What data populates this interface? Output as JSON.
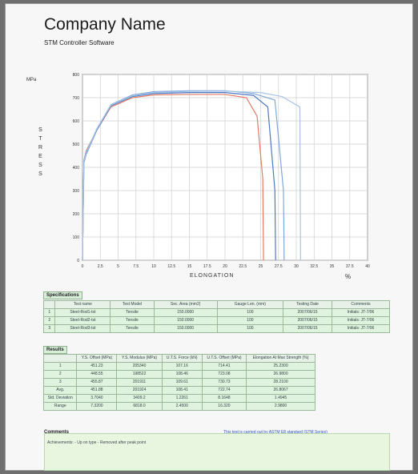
{
  "header": {
    "company": "Company Name",
    "software": "STM Controller Software"
  },
  "chart": {
    "y_unit": "MPa",
    "y_label": "STRESS",
    "x_label": "ELONGATION",
    "x_unit": "%"
  },
  "chart_data": {
    "type": "line",
    "xlabel": "ELONGATION",
    "ylabel": "STRESS",
    "xlim": [
      0,
      40
    ],
    "ylim": [
      0,
      800
    ],
    "x_ticks": [
      0,
      2.5,
      5,
      7.5,
      10,
      12.5,
      15,
      17.5,
      20,
      22.5,
      25,
      27.5,
      30,
      32.5,
      35,
      37.5,
      40
    ],
    "y_ticks": [
      0,
      100,
      200,
      300,
      400,
      500,
      600,
      700,
      800
    ],
    "series": [
      {
        "x": [
          0,
          0.2,
          0.5,
          1.0,
          2.0,
          4.0,
          7.0,
          10.0,
          15.0,
          20.0,
          23.0,
          24.5,
          25.3,
          25.4
        ],
        "y": [
          0,
          430,
          470,
          500,
          560,
          660,
          700,
          712,
          714,
          714,
          700,
          620,
          350,
          0
        ],
        "color": "#e37b63"
      },
      {
        "x": [
          0,
          0.2,
          0.5,
          1.0,
          2.0,
          4.0,
          7.0,
          10.0,
          15.0,
          20.0,
          24.0,
          26.0,
          27.0,
          27.1
        ],
        "y": [
          0,
          420,
          455,
          490,
          560,
          665,
          705,
          718,
          722,
          722,
          710,
          660,
          300,
          0
        ],
        "color": "#4d79c7"
      },
      {
        "x": [
          0,
          0.2,
          0.5,
          1.0,
          2.0,
          4.0,
          7.0,
          10.0,
          15.0,
          20.0,
          24.0,
          27.0,
          28.2,
          28.3
        ],
        "y": [
          0,
          430,
          465,
          495,
          565,
          670,
          712,
          726,
          730,
          730,
          718,
          690,
          300,
          0
        ],
        "color": "#7ea7d8"
      },
      {
        "x": [
          0,
          0.2,
          0.5,
          1.0,
          2.0,
          4.0,
          7.0,
          10.0,
          15.0,
          20.0,
          25.0,
          28.0,
          30.5,
          30.6
        ],
        "y": [
          0,
          425,
          460,
          495,
          565,
          668,
          708,
          722,
          727,
          728,
          722,
          705,
          660,
          0
        ],
        "color": "#a7c4e6"
      }
    ]
  },
  "specifications": {
    "title": "Specifications",
    "headers": [
      "Test name",
      "Test Model",
      "Sec. Area (mm2)",
      "Gauge Len. (mm)",
      "Testing Date",
      "Comments"
    ],
    "rows": [
      {
        "mark": "1",
        "cells": [
          "Steel-Rod1-tst",
          "Tensile",
          "150.0000",
          "100",
          "2007/06/15",
          "Initials: JT-7/06"
        ]
      },
      {
        "mark": "2",
        "cells": [
          "Steel-Rod2-tst",
          "Tensile",
          "150.0000",
          "100",
          "2007/06/15",
          "Initials: JT-7/06"
        ]
      },
      {
        "mark": "3",
        "cells": [
          "Steel-Rod3-tst",
          "Tensile",
          "150.0000",
          "100",
          "2007/06/15",
          "Initials: JT-7/06"
        ]
      }
    ]
  },
  "results": {
    "title": "Results",
    "headers": [
      "Y.S. Offset (MPa)",
      "Y.S. Modulus (MPa)",
      "U.T.S. Force (kN)",
      "U.T.S. Offset (MPa)",
      "Elongation At Max Strength (%)"
    ],
    "rows": [
      {
        "label": "1",
        "cells": [
          "451.23",
          "205340",
          "107.16",
          "714.41",
          "25.2300"
        ]
      },
      {
        "label": "2",
        "cells": [
          "448.55",
          "198522",
          "108.46",
          "723.08",
          "26.9800"
        ]
      },
      {
        "label": "3",
        "cells": [
          "455.87",
          "201911",
          "109.61",
          "730.73",
          "28.2100"
        ]
      },
      {
        "label": "Avg.",
        "cells": [
          "451.88",
          "201924",
          "108.41",
          "722.74",
          "26.8067"
        ]
      },
      {
        "label": "Std. Deviation",
        "cells": [
          "3.7040",
          "3409.2",
          "1.2261",
          "8.1648",
          "1.4945"
        ]
      },
      {
        "label": "Range",
        "cells": [
          "7.3200",
          "6818.0",
          "2.4500",
          "16.320",
          "2.9800"
        ]
      }
    ]
  },
  "comments": {
    "title": "Comments",
    "link": "This test is carried out by ASTM E8 standard (STM Series)",
    "text": "Achievements: - Up on type - Removed after peak point"
  }
}
